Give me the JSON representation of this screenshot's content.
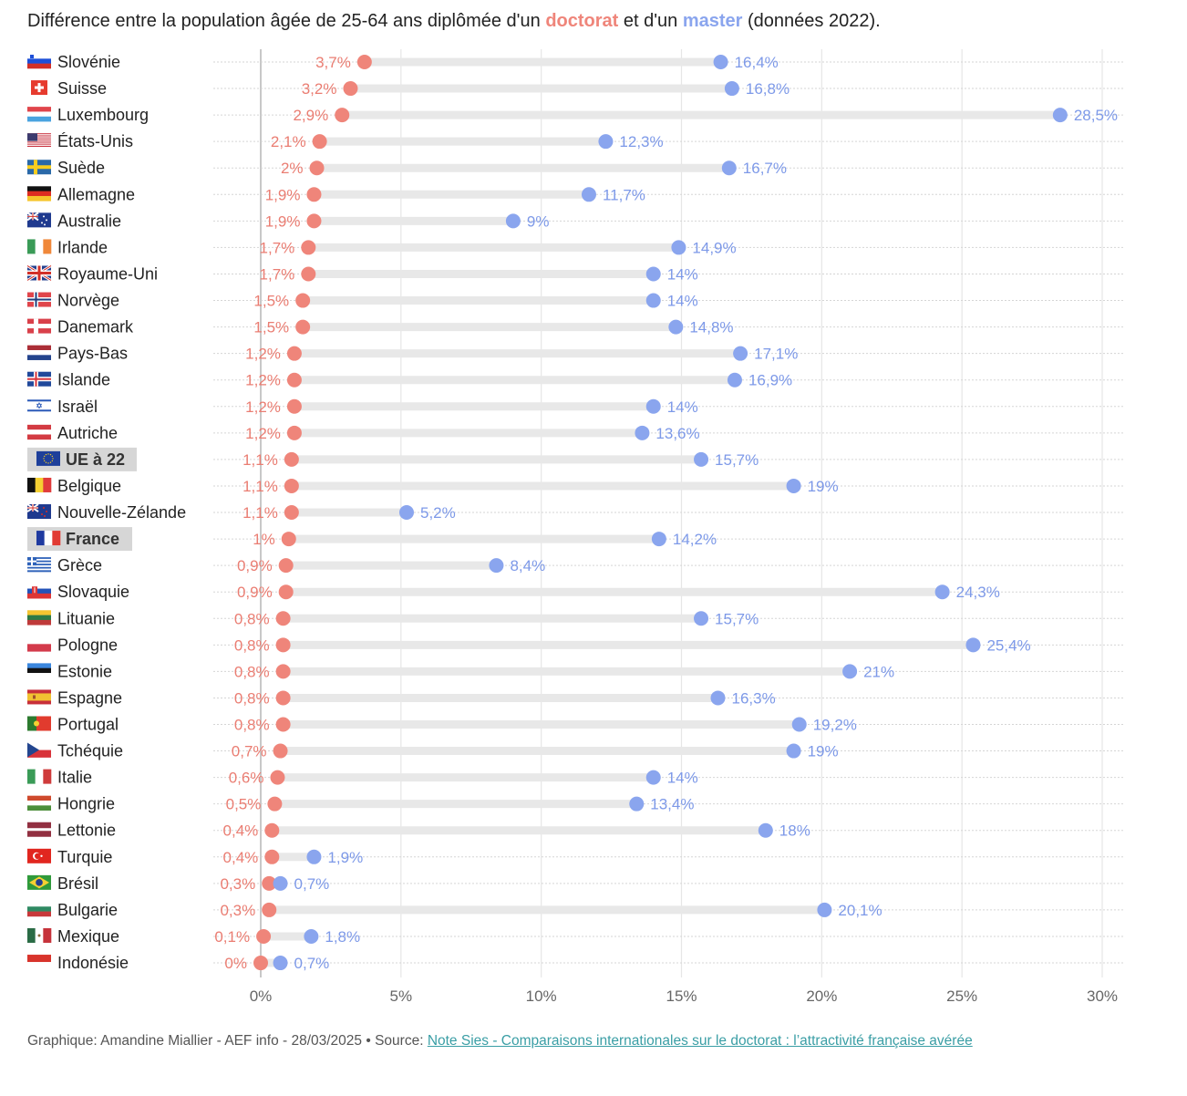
{
  "title": {
    "prefix": "Différence entre la population âgée de 25-64 ans diplômée d'un ",
    "doctorat": "doctorat",
    "middle": " et d'un ",
    "master": "master",
    "suffix": " (données 2022)."
  },
  "colors": {
    "doctorat": "#ef857a",
    "master": "#8aa5ee",
    "connector": "#e8e8e8",
    "highlight_bg": "#d6d6d6",
    "link": "#3a9ea5"
  },
  "footer": {
    "credit": "Graphique: Amandine Miallier - AEF info - 28/03/2025 • Source: ",
    "link_text": "Note Sies - Comparaisons internationales sur le doctorat : l’attractivité française avérée"
  },
  "chart_data": {
    "type": "dumbbell",
    "title": "Différence entre la population âgée de 25-64 ans diplômée d'un doctorat et d'un master (données 2022).",
    "xlabel": "",
    "ylabel": "",
    "xlim": [
      0,
      30
    ],
    "x_ticks": [
      "0%",
      "5%",
      "10%",
      "15%",
      "20%",
      "25%",
      "30%"
    ],
    "x_tick_values": [
      0,
      5,
      10,
      15,
      20,
      25,
      30
    ],
    "grid": true,
    "series": [
      {
        "name": "doctorat",
        "color": "#ef857a"
      },
      {
        "name": "master",
        "color": "#8aa5ee"
      }
    ],
    "rows": [
      {
        "country": "Slovénie",
        "flag": "slovenia-flag",
        "doctorat": 3.7,
        "master": 16.4,
        "doctorat_label": "3,7%",
        "master_label": "16,4%"
      },
      {
        "country": "Suisse",
        "flag": "switzerland-flag",
        "doctorat": 3.2,
        "master": 16.8,
        "doctorat_label": "3,2%",
        "master_label": "16,8%"
      },
      {
        "country": "Luxembourg",
        "flag": "luxembourg-flag",
        "doctorat": 2.9,
        "master": 28.5,
        "doctorat_label": "2,9%",
        "master_label": "28,5%"
      },
      {
        "country": "États-Unis",
        "flag": "usa-flag",
        "doctorat": 2.1,
        "master": 12.3,
        "doctorat_label": "2,1%",
        "master_label": "12,3%"
      },
      {
        "country": "Suède",
        "flag": "sweden-flag",
        "doctorat": 2.0,
        "master": 16.7,
        "doctorat_label": "2%",
        "master_label": "16,7%"
      },
      {
        "country": "Allemagne",
        "flag": "germany-flag",
        "doctorat": 1.9,
        "master": 11.7,
        "doctorat_label": "1,9%",
        "master_label": "11,7%"
      },
      {
        "country": "Australie",
        "flag": "australia-flag",
        "doctorat": 1.9,
        "master": 9.0,
        "doctorat_label": "1,9%",
        "master_label": "9%"
      },
      {
        "country": "Irlande",
        "flag": "ireland-flag",
        "doctorat": 1.7,
        "master": 14.9,
        "doctorat_label": "1,7%",
        "master_label": "14,9%"
      },
      {
        "country": "Royaume-Uni",
        "flag": "uk-flag",
        "doctorat": 1.7,
        "master": 14.0,
        "doctorat_label": "1,7%",
        "master_label": "14%"
      },
      {
        "country": "Norvège",
        "flag": "norway-flag",
        "doctorat": 1.5,
        "master": 14.0,
        "doctorat_label": "1,5%",
        "master_label": "14%"
      },
      {
        "country": "Danemark",
        "flag": "denmark-flag",
        "doctorat": 1.5,
        "master": 14.8,
        "doctorat_label": "1,5%",
        "master_label": "14,8%"
      },
      {
        "country": "Pays-Bas",
        "flag": "netherlands-flag",
        "doctorat": 1.2,
        "master": 17.1,
        "doctorat_label": "1,2%",
        "master_label": "17,1%"
      },
      {
        "country": "Islande",
        "flag": "iceland-flag",
        "doctorat": 1.2,
        "master": 16.9,
        "doctorat_label": "1,2%",
        "master_label": "16,9%"
      },
      {
        "country": "Israël",
        "flag": "israel-flag",
        "doctorat": 1.2,
        "master": 14.0,
        "doctorat_label": "1,2%",
        "master_label": "14%"
      },
      {
        "country": "Autriche",
        "flag": "austria-flag",
        "doctorat": 1.2,
        "master": 13.6,
        "doctorat_label": "1,2%",
        "master_label": "13,6%"
      },
      {
        "country": "UE à 22",
        "flag": "eu-flag",
        "highlight": true,
        "doctorat": 1.1,
        "master": 15.7,
        "doctorat_label": "1,1%",
        "master_label": "15,7%"
      },
      {
        "country": "Belgique",
        "flag": "belgium-flag",
        "doctorat": 1.1,
        "master": 19.0,
        "doctorat_label": "1,1%",
        "master_label": "19%"
      },
      {
        "country": "Nouvelle-Zélande",
        "flag": "new-zealand-flag",
        "doctorat": 1.1,
        "master": 5.2,
        "doctorat_label": "1,1%",
        "master_label": "5,2%"
      },
      {
        "country": "France",
        "flag": "france-flag",
        "highlight": true,
        "doctorat": 1.0,
        "master": 14.2,
        "doctorat_label": "1%",
        "master_label": "14,2%"
      },
      {
        "country": "Grèce",
        "flag": "greece-flag",
        "doctorat": 0.9,
        "master": 8.4,
        "doctorat_label": "0,9%",
        "master_label": "8,4%"
      },
      {
        "country": "Slovaquie",
        "flag": "slovakia-flag",
        "doctorat": 0.9,
        "master": 24.3,
        "doctorat_label": "0,9%",
        "master_label": "24,3%"
      },
      {
        "country": "Lituanie",
        "flag": "lithuania-flag",
        "doctorat": 0.8,
        "master": 15.7,
        "doctorat_label": "0,8%",
        "master_label": "15,7%"
      },
      {
        "country": "Pologne",
        "flag": "poland-flag",
        "doctorat": 0.8,
        "master": 25.4,
        "doctorat_label": "0,8%",
        "master_label": "25,4%"
      },
      {
        "country": "Estonie",
        "flag": "estonia-flag",
        "doctorat": 0.8,
        "master": 21.0,
        "doctorat_label": "0,8%",
        "master_label": "21%"
      },
      {
        "country": "Espagne",
        "flag": "spain-flag",
        "doctorat": 0.8,
        "master": 16.3,
        "doctorat_label": "0,8%",
        "master_label": "16,3%"
      },
      {
        "country": "Portugal",
        "flag": "portugal-flag",
        "doctorat": 0.8,
        "master": 19.2,
        "doctorat_label": "0,8%",
        "master_label": "19,2%"
      },
      {
        "country": "Tchéquie",
        "flag": "czechia-flag",
        "doctorat": 0.7,
        "master": 19.0,
        "doctorat_label": "0,7%",
        "master_label": "19%"
      },
      {
        "country": "Italie",
        "flag": "italy-flag",
        "doctorat": 0.6,
        "master": 14.0,
        "doctorat_label": "0,6%",
        "master_label": "14%"
      },
      {
        "country": "Hongrie",
        "flag": "hungary-flag",
        "doctorat": 0.5,
        "master": 13.4,
        "doctorat_label": "0,5%",
        "master_label": "13,4%"
      },
      {
        "country": "Lettonie",
        "flag": "latvia-flag",
        "doctorat": 0.4,
        "master": 18.0,
        "doctorat_label": "0,4%",
        "master_label": "18%"
      },
      {
        "country": "Turquie",
        "flag": "turkey-flag",
        "doctorat": 0.4,
        "master": 1.9,
        "doctorat_label": "0,4%",
        "master_label": "1,9%"
      },
      {
        "country": "Brésil",
        "flag": "brazil-flag",
        "doctorat": 0.3,
        "master": 0.7,
        "doctorat_label": "0,3%",
        "master_label": "0,7%"
      },
      {
        "country": "Bulgarie",
        "flag": "bulgaria-flag",
        "doctorat": 0.3,
        "master": 20.1,
        "doctorat_label": "0,3%",
        "master_label": "20,1%"
      },
      {
        "country": "Mexique",
        "flag": "mexico-flag",
        "doctorat": 0.1,
        "master": 1.8,
        "doctorat_label": "0,1%",
        "master_label": "1,8%"
      },
      {
        "country": "Indonésie",
        "flag": "indonesia-flag",
        "doctorat": 0.0,
        "master": 0.7,
        "doctorat_label": "0%",
        "master_label": "0,7%"
      }
    ]
  }
}
